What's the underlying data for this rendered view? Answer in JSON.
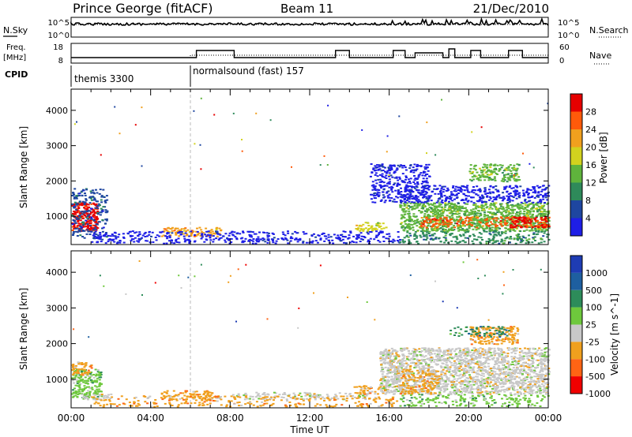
{
  "header": {
    "station": "Prince George (fitACF)",
    "beam": "Beam 11",
    "date": "21/Dec/2010"
  },
  "noise_panel": {
    "left_label": "N.Sky",
    "left_ticks": [
      "10^5",
      "10^0"
    ],
    "right_ticks": [
      "10^5",
      "10^0"
    ],
    "right_label": "N.Search"
  },
  "freq_panel": {
    "left_label_1": "Freq.",
    "left_label_2": "[MHz]",
    "left_ticks": [
      "18",
      "8"
    ],
    "right_ticks": [
      "60",
      "0"
    ],
    "right_label": "Nave"
  },
  "cpid_panel": {
    "label": "CPID",
    "modes": [
      {
        "name": "themis 3300",
        "start_hour": 0
      },
      {
        "name": "normalsound (fast) 157",
        "start_hour": 6
      }
    ]
  },
  "x_axis": {
    "title": "Time UT",
    "ticks": [
      "00:00",
      "04:00",
      "08:00",
      "12:00",
      "16:00",
      "20:00",
      "00:00"
    ],
    "tick_hours": [
      0,
      4,
      8,
      12,
      16,
      20,
      24
    ],
    "range": [
      0,
      24
    ]
  },
  "colors": {
    "power": [
      "#1e1ee6",
      "#1e46a0",
      "#2e8a5a",
      "#5fb43c",
      "#d2d21e",
      "#f0a01e",
      "#ff5a0a",
      "#e60000"
    ],
    "velocity": [
      "#1e3cb4",
      "#1e5fa0",
      "#2d8c5a",
      "#6ec83c",
      "#c8c8c8",
      "#f0a01e",
      "#ff6414",
      "#f00000"
    ]
  },
  "chart_data": [
    {
      "type": "heatmap",
      "panel": "power",
      "ylabel": "Slant Range [km]",
      "yticks": [
        1000,
        2000,
        3000,
        4000
      ],
      "ylim": [
        200,
        4600
      ],
      "colorbar_label": "Power [dB]",
      "colorbar_ticks": [
        "4",
        "8",
        "12",
        "16",
        "20",
        "24",
        "28"
      ],
      "scatter_regions": [
        {
          "t0": 0.0,
          "t1": 1.3,
          "r0": 600,
          "r1": 1400,
          "level": 7,
          "density": 0.95
        },
        {
          "t0": 0.0,
          "t1": 1.8,
          "r0": 400,
          "r1": 1800,
          "level": 1,
          "density": 0.35
        },
        {
          "t0": 4.5,
          "t1": 7.5,
          "r0": 450,
          "r1": 700,
          "level": 5,
          "density": 0.55
        },
        {
          "t0": 14.2,
          "t1": 15.8,
          "r0": 600,
          "r1": 850,
          "level": 4,
          "density": 0.5
        },
        {
          "t0": 1.0,
          "t1": 16.5,
          "r0": 250,
          "r1": 600,
          "level": 0,
          "density": 0.35
        },
        {
          "t0": 16.5,
          "t1": 24.0,
          "r0": 600,
          "r1": 1400,
          "level": 3,
          "density": 0.8
        },
        {
          "t0": 16.5,
          "t1": 24.0,
          "r0": 1400,
          "r1": 1900,
          "level": 0,
          "density": 0.45
        },
        {
          "t0": 17.5,
          "t1": 24.0,
          "r0": 700,
          "r1": 1000,
          "level": 6,
          "density": 0.4
        },
        {
          "t0": 20.0,
          "t1": 22.5,
          "r0": 2000,
          "r1": 2500,
          "level": 3,
          "density": 0.6
        },
        {
          "t0": 22.0,
          "t1": 24.0,
          "r0": 700,
          "r1": 1000,
          "level": 7,
          "density": 0.6
        },
        {
          "t0": 15.0,
          "t1": 18.0,
          "r0": 1400,
          "r1": 2500,
          "level": 0,
          "density": 0.45
        },
        {
          "t0": 16.5,
          "t1": 24.0,
          "r0": 250,
          "r1": 600,
          "level": 2,
          "density": 0.4
        }
      ]
    },
    {
      "type": "heatmap",
      "panel": "velocity",
      "ylabel": "Slant Range [km]",
      "yticks": [
        1000,
        2000,
        3000,
        4000
      ],
      "ylim": [
        200,
        4600
      ],
      "colorbar_label": "Velocity [m s^-1]",
      "colorbar_ticks": [
        "1000",
        "500",
        "100",
        "25",
        "-25",
        "-100",
        "-500",
        "-1000"
      ],
      "scatter_regions": [
        {
          "t0": 0.0,
          "t1": 1.5,
          "r0": 500,
          "r1": 1300,
          "level": 3,
          "density": 0.7
        },
        {
          "t0": 0.0,
          "t1": 1.0,
          "r0": 1100,
          "r1": 1500,
          "level": 5,
          "density": 0.6
        },
        {
          "t0": 0.5,
          "t1": 2.0,
          "r0": 450,
          "r1": 600,
          "level": 4,
          "density": 0.7
        },
        {
          "t0": 4.5,
          "t1": 7.5,
          "r0": 450,
          "r1": 700,
          "level": 5,
          "density": 0.55
        },
        {
          "t0": 8.0,
          "t1": 15.0,
          "r0": 450,
          "r1": 650,
          "level": 4,
          "density": 0.4
        },
        {
          "t0": 14.2,
          "t1": 15.8,
          "r0": 600,
          "r1": 850,
          "level": 5,
          "density": 0.5
        },
        {
          "t0": 1.0,
          "t1": 16.5,
          "r0": 250,
          "r1": 550,
          "level": 5,
          "density": 0.25
        },
        {
          "t0": 15.5,
          "t1": 24.0,
          "r0": 600,
          "r1": 1900,
          "level": 4,
          "density": 0.8
        },
        {
          "t0": 16.5,
          "t1": 18.5,
          "r0": 600,
          "r1": 1300,
          "level": 5,
          "density": 0.5
        },
        {
          "t0": 20.0,
          "t1": 22.5,
          "r0": 2000,
          "r1": 2500,
          "level": 5,
          "density": 0.6
        },
        {
          "t0": 19.0,
          "t1": 22.0,
          "r0": 2200,
          "r1": 2500,
          "level": 2,
          "density": 0.3
        },
        {
          "t0": 16.5,
          "t1": 24.0,
          "r0": 250,
          "r1": 600,
          "level": 3,
          "density": 0.3
        }
      ]
    }
  ]
}
